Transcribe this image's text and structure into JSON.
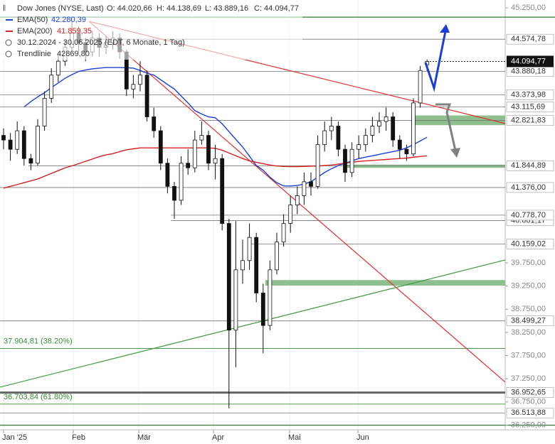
{
  "chart_data": {
    "type": "candlestick",
    "header": "Dow Jones (NYSE, Last)",
    "ohlc_text": {
      "o": "O: 44.020,66",
      "h": "H: 44.138,69",
      "l": "L: 43.889,16",
      "c": "C: 44.094,77"
    },
    "period": "30.12.2024 - 30.06.2025 (EDT, 6 Monate, 1 Tag)",
    "months": [
      "Jan '25",
      "Feb",
      "Mär",
      "Apr",
      "Mai",
      "Jun"
    ],
    "ylim": [
      36150,
      45420
    ],
    "yticks": [
      {
        "value": 45250,
        "label": "45.250,00"
      },
      {
        "value": 39750,
        "label": "39.750,00"
      },
      {
        "value": 39250,
        "label": "39.250,00"
      },
      {
        "value": 38750,
        "label": "38.750,00"
      },
      {
        "value": 38250,
        "label": "38.250,00"
      },
      {
        "value": 37750,
        "label": "37.750,00"
      },
      {
        "value": 37250,
        "label": "37.250,00"
      },
      {
        "value": 36750,
        "label": "36.750,00"
      },
      {
        "value": 36250,
        "label": "36.250,00"
      }
    ],
    "candles": [
      [
        42500,
        42650,
        42200,
        42400
      ],
      [
        42400,
        42550,
        41950,
        42200
      ],
      [
        42200,
        42800,
        42100,
        42600
      ],
      [
        42600,
        42700,
        41850,
        42000
      ],
      [
        42000,
        42100,
        41750,
        41900
      ],
      [
        41900,
        42850,
        41850,
        42700
      ],
      [
        42700,
        43450,
        42600,
        43300
      ],
      [
        43300,
        43950,
        43200,
        43800
      ],
      [
        43800,
        44250,
        43650,
        44100
      ],
      [
        44100,
        44550,
        44000,
        44400
      ],
      [
        44400,
        44950,
        44300,
        44700
      ],
      [
        44700,
        44850,
        44300,
        44500
      ],
      [
        44500,
        44600,
        44100,
        44300
      ],
      [
        44300,
        44750,
        44200,
        44600
      ],
      [
        44600,
        44700,
        44200,
        44400
      ],
      [
        44400,
        44650,
        44250,
        44500
      ],
      [
        44500,
        44750,
        44350,
        44600
      ],
      [
        44600,
        44700,
        44150,
        44300
      ],
      [
        44300,
        44350,
        43350,
        43500
      ],
      [
        43500,
        43800,
        43300,
        43600
      ],
      [
        43600,
        44100,
        43450,
        43800
      ],
      [
        43800,
        43900,
        42800,
        42900
      ],
      [
        42900,
        43100,
        42450,
        42600
      ],
      [
        42600,
        42700,
        41750,
        41900
      ],
      [
        41900,
        42000,
        41250,
        41400
      ],
      [
        41400,
        41500,
        40700,
        41100
      ],
      [
        41100,
        42050,
        41000,
        41900
      ],
      [
        41900,
        42200,
        41650,
        41800
      ],
      [
        41800,
        42600,
        41700,
        42400
      ],
      [
        42400,
        42800,
        42300,
        42500
      ],
      [
        42500,
        42600,
        41750,
        41900
      ],
      [
        41900,
        42300,
        41550,
        42000
      ],
      [
        42000,
        42100,
        40450,
        40600
      ],
      [
        40600,
        40700,
        36611,
        38300
      ],
      [
        38300,
        40650,
        37500,
        39600
      ],
      [
        39600,
        40250,
        39300,
        39800
      ],
      [
        39800,
        40600,
        39600,
        40300
      ],
      [
        40300,
        40400,
        38900,
        39100
      ],
      [
        39100,
        39300,
        37800,
        38400
      ],
      [
        38400,
        39800,
        38300,
        39600
      ],
      [
        39600,
        40400,
        39500,
        40200
      ],
      [
        40200,
        40800,
        40100,
        40600
      ],
      [
        40600,
        41200,
        40400,
        41000
      ],
      [
        41000,
        41400,
        40800,
        41200
      ],
      [
        41200,
        41700,
        41000,
        41500
      ],
      [
        41500,
        41700,
        41200,
        41400
      ],
      [
        41400,
        42500,
        41350,
        42300
      ],
      [
        42300,
        42800,
        42150,
        42600
      ],
      [
        42600,
        42900,
        42400,
        42700
      ],
      [
        42700,
        42800,
        42050,
        42200
      ],
      [
        42200,
        42300,
        41500,
        41700
      ],
      [
        41700,
        42350,
        41600,
        42200
      ],
      [
        42200,
        42500,
        42000,
        42300
      ],
      [
        42300,
        42650,
        42150,
        42500
      ],
      [
        42500,
        42900,
        42350,
        42700
      ],
      [
        42700,
        43000,
        42550,
        42800
      ],
      [
        42800,
        43100,
        42600,
        42900
      ],
      [
        42900,
        43000,
        42250,
        42400
      ],
      [
        42400,
        42500,
        42000,
        42200
      ],
      [
        42200,
        42300,
        41950,
        42100
      ],
      [
        42100,
        43300,
        42050,
        43200
      ],
      [
        43200,
        44000,
        43100,
        43900
      ],
      [
        44020.66,
        44138.69,
        43889.16,
        44094.77
      ]
    ],
    "series": [
      {
        "name": "EMA(50)",
        "label": "42.280,39",
        "color": "#1a3fd6",
        "values": [
          null,
          null,
          null,
          43112,
          43230,
          43330,
          43422,
          43530,
          43630,
          43732,
          43810,
          43880,
          43910,
          43935,
          43950,
          43964,
          43964,
          43964,
          43960,
          43950,
          43900,
          43840,
          43800,
          43700,
          43600,
          43500,
          43350,
          43200,
          43035,
          42960,
          42900,
          42880,
          42750,
          42580,
          42415,
          42250,
          42050,
          41850,
          41750,
          41600,
          41480,
          41410,
          41408,
          41420,
          41450,
          41500,
          41600,
          41700,
          41780,
          41850,
          41900,
          41950,
          42000,
          42030,
          42060,
          42090,
          42120,
          42150,
          42180,
          42230,
          42300,
          42380,
          42460
        ]
      },
      {
        "name": "EMA(200)",
        "label": "41.859,35",
        "color": "#d62020",
        "values": [
          41362,
          41400,
          41440,
          41480,
          41520,
          41560,
          41620,
          41680,
          41740,
          41800,
          41842,
          41890,
          41940,
          41990,
          42040,
          42080,
          42106,
          42150,
          42190,
          42210,
          42230,
          42230,
          42230,
          42230,
          42230,
          42230,
          42230,
          42230,
          42230,
          42230,
          42230,
          42220,
          42180,
          42120,
          42060,
          42000,
          41950,
          41920,
          41890,
          41860,
          41840,
          41830,
          41826,
          41826,
          41830,
          41835,
          41840,
          41850,
          41860,
          41880,
          41900,
          41920,
          41940,
          41950,
          41960,
          41970,
          41980,
          41990,
          42000,
          42010,
          42030,
          42045,
          42059
        ]
      }
    ],
    "trendline_name": "Trendlinie",
    "trendline_label": "42869,80",
    "trendlines": [
      {
        "color": "#e03030",
        "values": [
          44960,
          42756
        ]
      },
      {
        "color": "#e03030",
        "values": [
          44960,
          37180
        ]
      },
      {
        "color": "#3a9a3a",
        "values": [
          37070,
          39813
        ]
      }
    ],
    "zones": [
      [
        42720,
        42930
      ],
      [
        41800,
        41870
      ],
      [
        39260,
        39380
      ]
    ],
    "green_lines": [
      45050,
      36250
    ],
    "levels": [
      {
        "value": 44574.78,
        "label": "44.574,78"
      },
      {
        "value": 43880.18,
        "label": "43.880,18"
      },
      {
        "value": 43373.98,
        "label": "43.373,98"
      },
      {
        "value": 43115.69,
        "label": "43.115,69"
      },
      {
        "value": 42821.83,
        "label": "42.821,83"
      },
      {
        "value": 41844.89,
        "label": "41.844,89"
      },
      {
        "value": 41376.0,
        "label": "41.376,00"
      },
      {
        "value": 40661.17,
        "label": "40.661,17"
      },
      {
        "value": 40778.7,
        "label": "40.778,70"
      },
      {
        "value": 40159.02,
        "label": "40.159,02"
      },
      {
        "value": 38499.27,
        "label": "38.499,27"
      },
      {
        "value": 36952.65,
        "label": "36.952,65"
      },
      {
        "value": 36513.88,
        "label": "36.513,88"
      }
    ],
    "fibs": [
      {
        "value": 37904.81,
        "label": "37.904,81 (38.20%)"
      },
      {
        "value": 36703.84,
        "label": "36.703,84 (61.80%)"
      }
    ],
    "last_price": {
      "value": 44094.77,
      "label": "44.094,77"
    }
  }
}
